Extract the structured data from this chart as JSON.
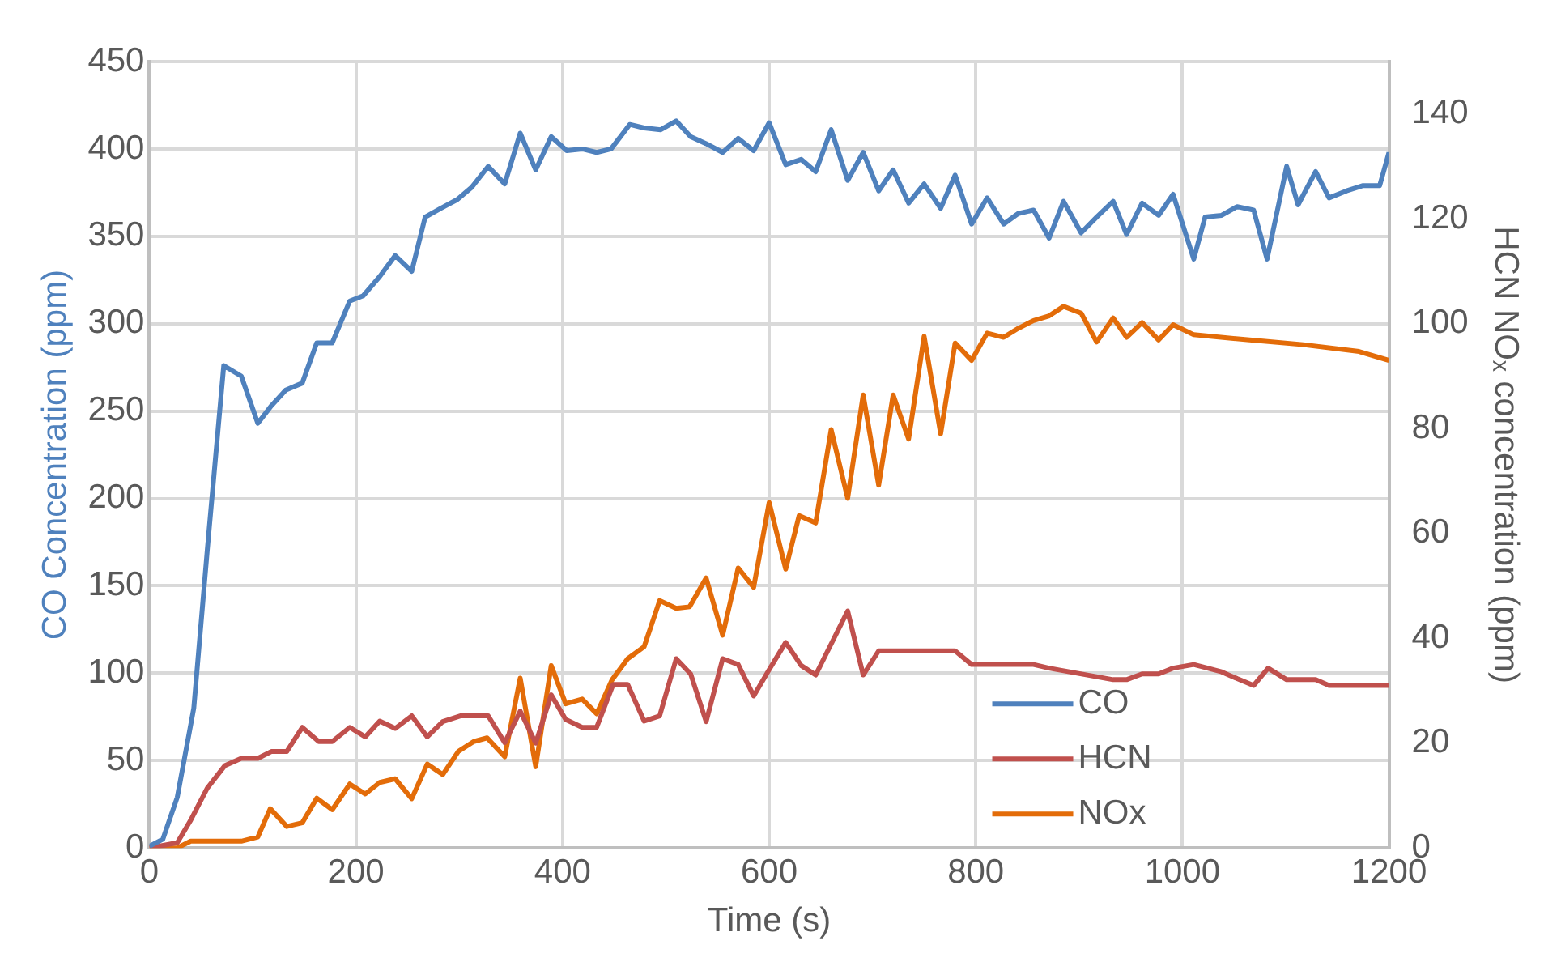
{
  "chart_data": {
    "type": "line",
    "xlabel": "Time (s)",
    "ylabel": "CO Concentration (ppm)",
    "y2label": "HCN NOₓ concentration (ppm)",
    "xlim": [
      0,
      1200
    ],
    "xticks": [
      0,
      200,
      400,
      600,
      800,
      1000,
      1200
    ],
    "ylim": [
      0,
      450
    ],
    "yticks": [
      0,
      50,
      100,
      150,
      200,
      250,
      300,
      350,
      400,
      450
    ],
    "y2lim": [
      0,
      150
    ],
    "y2ticks": [
      0,
      20,
      40,
      60,
      80,
      100,
      120,
      140
    ],
    "grid": true,
    "legend": "bottom right",
    "marker": "none",
    "line_style": "solid",
    "series": [
      {
        "name": "CO",
        "color": "#4f81bd",
        "x": [
          0,
          13,
          27,
          43,
          56,
          72,
          89,
          105,
          118,
          132,
          148,
          162,
          177,
          194,
          207,
          223,
          238,
          254,
          267,
          282,
          298,
          312,
          328,
          344,
          359,
          374,
          389,
          404,
          419,
          433,
          447,
          465,
          479,
          495,
          510,
          524,
          539,
          555,
          570,
          585,
          600,
          616,
          631,
          645,
          660,
          676,
          691,
          706,
          720,
          735,
          750,
          766,
          780,
          796,
          811,
          827,
          841,
          856,
          871,
          885,
          902,
          917,
          933,
          946,
          961,
          977,
          991,
          1011,
          1022,
          1038,
          1053,
          1069,
          1082,
          1101,
          1112,
          1129,
          1142,
          1159,
          1175,
          1191,
          1200
        ],
        "values": [
          1,
          5,
          29,
          80,
          170,
          276,
          270,
          243,
          253,
          262,
          266,
          289,
          289,
          313,
          316,
          327,
          339,
          330,
          361,
          366,
          371,
          378,
          390,
          380,
          409,
          388,
          407,
          399,
          400,
          398,
          400,
          414,
          412,
          411,
          416,
          407,
          403,
          398,
          406,
          399,
          415,
          391,
          394,
          387,
          411,
          382,
          398,
          376,
          388,
          369,
          380,
          366,
          385,
          357,
          372,
          357,
          363,
          365,
          349,
          370,
          352,
          361,
          370,
          351,
          369,
          362,
          374,
          337,
          361,
          362,
          367,
          365,
          337,
          390,
          368,
          387,
          372,
          376,
          379,
          379,
          398
        ]
      },
      {
        "name": "HCN",
        "color": "#c0504d",
        "axis": "y2",
        "x": [
          0,
          27,
          40,
          56,
          73,
          89,
          105,
          118,
          133,
          148,
          164,
          177,
          194,
          209,
          223,
          238,
          254,
          269,
          284,
          301,
          328,
          344,
          359,
          374,
          389,
          403,
          419,
          433,
          449,
          463,
          479,
          494,
          510,
          524,
          539,
          555,
          570,
          585,
          600,
          616,
          631,
          645,
          676,
          691,
          706,
          780,
          796,
          856,
          871,
          933,
          946,
          961,
          977,
          991,
          1011,
          1038,
          1053,
          1069,
          1083,
          1101,
          1129,
          1142,
          1200
        ],
        "values": [
          0,
          1,
          5.3,
          11.4,
          15.7,
          17.1,
          17.1,
          18.4,
          18.4,
          23,
          20.3,
          20.3,
          23,
          21.2,
          24.2,
          22.8,
          25.2,
          21.2,
          24.1,
          25.2,
          25.2,
          20.1,
          26.1,
          20,
          29.2,
          24.5,
          23,
          23,
          31.2,
          31.2,
          24.2,
          25.2,
          36.1,
          33.2,
          24.1,
          36.1,
          35,
          29,
          34,
          39.2,
          34.8,
          33,
          45.2,
          33,
          37.6,
          37.6,
          35,
          35,
          34.3,
          32.1,
          32.1,
          33.2,
          33.2,
          34.3,
          35,
          33.6,
          32.3,
          31,
          34.3,
          32.1,
          32.1,
          31,
          31
        ]
      },
      {
        "name": "NOx",
        "color": "#e36c09",
        "axis": "y2",
        "x": [
          0,
          27,
          40,
          89,
          105,
          117,
          133,
          148,
          162,
          177,
          194,
          209,
          223,
          238,
          254,
          269,
          284,
          299,
          314,
          327,
          344,
          359,
          374,
          389,
          403,
          419,
          433,
          448,
          463,
          479,
          494,
          510,
          523,
          539,
          555,
          570,
          585,
          600,
          616,
          629,
          645,
          660,
          676,
          691,
          706,
          720,
          735,
          750,
          766,
          780,
          796,
          811,
          827,
          841,
          856,
          871,
          885,
          902,
          917,
          933,
          946,
          961,
          977,
          991,
          1011,
          1065,
          1117,
          1171,
          1200
        ],
        "values": [
          0,
          0,
          1.3,
          1.3,
          2.1,
          7.5,
          4.1,
          4.8,
          9.5,
          7.3,
          12.2,
          10.3,
          12.5,
          13.2,
          9.4,
          16,
          14,
          18.4,
          20.3,
          21,
          17.4,
          32.4,
          15.5,
          34.8,
          27.5,
          28.4,
          25.6,
          32.1,
          36.1,
          38.4,
          47.2,
          45.7,
          46,
          51.5,
          40.6,
          53.4,
          49.7,
          65.9,
          53.2,
          63.4,
          62,
          79.8,
          66.7,
          86.4,
          69.2,
          86.4,
          78,
          97.6,
          79,
          96.3,
          93,
          98.2,
          97.4,
          99.1,
          100.6,
          101.5,
          103.3,
          102,
          96.5,
          101.1,
          97.4,
          100.2,
          96.9,
          99.8,
          97.9,
          96.9,
          96,
          94.7,
          93
        ]
      }
    ]
  }
}
